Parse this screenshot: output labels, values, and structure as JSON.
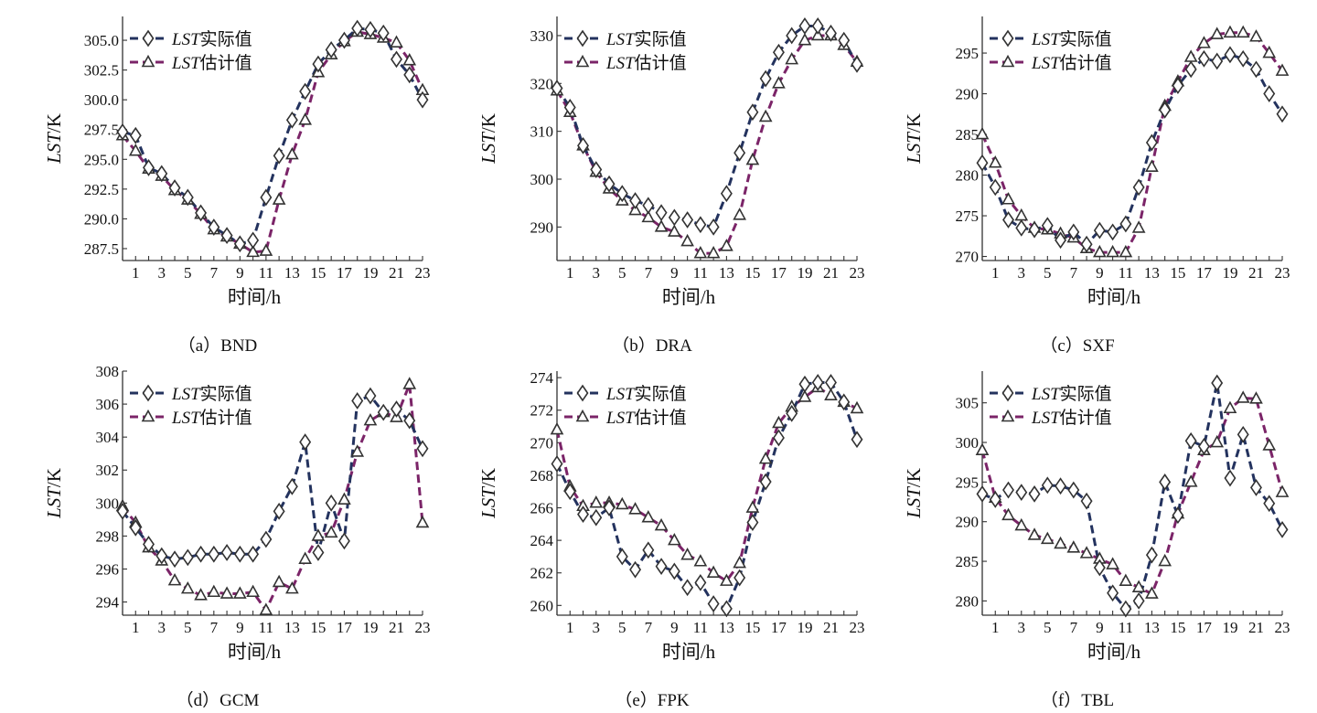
{
  "colors": {
    "actual": "#23325e",
    "estimated": "#7b2468",
    "axis": "#333333",
    "marker_fill": "#ffffff"
  },
  "legend": {
    "actual_prefix": "LST",
    "actual_suffix": "实际值",
    "estimated_prefix": "LST",
    "estimated_suffix": "估计值"
  },
  "axes": {
    "xlabel": "时间/h",
    "ylabel_prefix": "LST",
    "ylabel_suffix": "/K"
  },
  "chart_data": [
    {
      "type": "line",
      "caption": "（a）BND",
      "x": [
        0,
        1,
        2,
        3,
        4,
        5,
        6,
        7,
        8,
        9,
        10,
        11,
        12,
        13,
        14,
        15,
        16,
        17,
        18,
        19,
        20,
        21,
        22,
        23
      ],
      "xticks": [
        1,
        3,
        5,
        7,
        9,
        11,
        13,
        15,
        17,
        19,
        21,
        23
      ],
      "xlim": [
        0,
        23
      ],
      "yticks": [
        287.5,
        290.0,
        292.5,
        295.0,
        297.5,
        300.0,
        302.5,
        305.0
      ],
      "ylim": [
        286.5,
        307
      ],
      "series": [
        {
          "name": "LST实际值",
          "marker": "diamond",
          "values": [
            297.3,
            297.0,
            294.3,
            293.8,
            292.6,
            291.8,
            290.5,
            289.3,
            288.6,
            287.9,
            288.2,
            291.8,
            295.3,
            298.3,
            300.7,
            303.0,
            304.2,
            305.0,
            306.0,
            305.9,
            305.6,
            303.4,
            302.1,
            300.0
          ]
        },
        {
          "name": "LST估计值",
          "marker": "triangle",
          "values": [
            297.0,
            295.7,
            294.2,
            293.6,
            292.4,
            291.6,
            290.4,
            289.1,
            288.5,
            287.9,
            287.2,
            287.3,
            291.6,
            295.4,
            298.3,
            302.3,
            303.8,
            304.9,
            305.7,
            305.5,
            305.2,
            304.8,
            303.3,
            300.8
          ]
        }
      ]
    },
    {
      "type": "line",
      "caption": "（b）DRA",
      "x": [
        0,
        1,
        2,
        3,
        4,
        5,
        6,
        7,
        8,
        9,
        10,
        11,
        12,
        13,
        14,
        15,
        16,
        17,
        18,
        19,
        20,
        21,
        22,
        23
      ],
      "xticks": [
        1,
        3,
        5,
        7,
        9,
        11,
        13,
        15,
        17,
        19,
        21,
        23
      ],
      "xlim": [
        0,
        23
      ],
      "yticks": [
        290,
        300,
        310,
        320,
        330
      ],
      "ylim": [
        283,
        334
      ],
      "series": [
        {
          "name": "LST实际值",
          "marker": "diamond",
          "values": [
            319.0,
            315.0,
            307.0,
            302.0,
            299.0,
            297.0,
            295.5,
            294.5,
            293.0,
            292.0,
            291.5,
            290.5,
            290.0,
            297.0,
            305.5,
            314.0,
            321.0,
            326.5,
            330.0,
            332.0,
            332.0,
            330.5,
            329.0,
            324.0
          ]
        },
        {
          "name": "LST估计值",
          "marker": "triangle",
          "values": [
            318.5,
            314.0,
            307.0,
            301.5,
            298.0,
            295.5,
            293.5,
            292.0,
            290.0,
            289.0,
            287.0,
            284.5,
            284.5,
            286.0,
            292.5,
            304.0,
            313.0,
            320.0,
            325.0,
            329.0,
            330.0,
            330.0,
            328.0,
            324.5
          ]
        }
      ]
    },
    {
      "type": "line",
      "caption": "（c）SXF",
      "x": [
        0,
        1,
        2,
        3,
        4,
        5,
        6,
        7,
        8,
        9,
        10,
        11,
        12,
        13,
        14,
        15,
        16,
        17,
        18,
        19,
        20,
        21,
        22,
        23
      ],
      "xticks": [
        1,
        3,
        5,
        7,
        9,
        11,
        13,
        15,
        17,
        19,
        21,
        23
      ],
      "xlim": [
        0,
        23
      ],
      "yticks": [
        270,
        275,
        280,
        285,
        290,
        295
      ],
      "ylim": [
        269.5,
        299.5
      ],
      "series": [
        {
          "name": "LST实际值",
          "marker": "diamond",
          "values": [
            281.5,
            278.5,
            274.5,
            273.5,
            273.3,
            273.8,
            272.0,
            273.0,
            271.5,
            273.2,
            273.0,
            274.0,
            278.5,
            284.0,
            288.0,
            291.0,
            293.0,
            294.3,
            294.0,
            294.8,
            294.3,
            293.0,
            290.0,
            287.5
          ]
        },
        {
          "name": "LST估计值",
          "marker": "triangle",
          "values": [
            285.0,
            281.5,
            277.0,
            275.0,
            273.5,
            273.3,
            272.8,
            272.3,
            271.0,
            270.5,
            270.5,
            270.5,
            273.5,
            281.0,
            288.5,
            291.5,
            294.5,
            296.2,
            297.3,
            297.5,
            297.5,
            297.0,
            295.0,
            292.8
          ]
        }
      ]
    },
    {
      "type": "line",
      "caption": "（d）GCM",
      "x": [
        0,
        1,
        2,
        3,
        4,
        5,
        6,
        7,
        8,
        9,
        10,
        11,
        12,
        13,
        14,
        15,
        16,
        17,
        18,
        19,
        20,
        21,
        22,
        23
      ],
      "xticks": [
        1,
        3,
        5,
        7,
        9,
        11,
        13,
        15,
        17,
        19,
        21,
        23
      ],
      "xlim": [
        0,
        23
      ],
      "yticks": [
        294,
        296,
        298,
        300,
        302,
        304,
        306,
        308
      ],
      "ylim": [
        293.2,
        308
      ],
      "series": [
        {
          "name": "LST实际值",
          "marker": "diamond",
          "values": [
            299.5,
            298.5,
            297.5,
            296.8,
            296.6,
            296.7,
            296.9,
            296.9,
            297.0,
            296.9,
            296.9,
            297.8,
            299.5,
            301.0,
            303.7,
            297.0,
            300.0,
            297.7,
            306.2,
            306.5,
            305.5,
            305.7,
            305.0,
            303.3
          ]
        },
        {
          "name": "LST估计值",
          "marker": "triangle",
          "values": [
            299.8,
            298.8,
            297.3,
            296.5,
            295.3,
            294.8,
            294.4,
            294.6,
            294.5,
            294.5,
            294.6,
            293.5,
            295.2,
            294.8,
            296.6,
            298.0,
            298.2,
            300.2,
            303.1,
            305.0,
            305.5,
            305.2,
            307.2,
            298.8
          ]
        }
      ]
    },
    {
      "type": "line",
      "caption": "（e）FPK",
      "x": [
        0,
        1,
        2,
        3,
        4,
        5,
        6,
        7,
        8,
        9,
        10,
        11,
        12,
        13,
        14,
        15,
        16,
        17,
        18,
        19,
        20,
        21,
        22,
        23
      ],
      "xticks": [
        1,
        3,
        5,
        7,
        9,
        11,
        13,
        15,
        17,
        19,
        21,
        23
      ],
      "xlim": [
        0,
        23
      ],
      "yticks": [
        260,
        262,
        264,
        266,
        268,
        270,
        272,
        274
      ],
      "ylim": [
        259.4,
        274.4
      ],
      "series": [
        {
          "name": "LST实际值",
          "marker": "diamond",
          "values": [
            268.7,
            267.0,
            265.6,
            265.4,
            266.0,
            263.0,
            262.2,
            263.4,
            262.4,
            262.1,
            261.1,
            261.4,
            260.1,
            259.8,
            261.7,
            265.1,
            267.6,
            270.3,
            271.8,
            273.6,
            273.7,
            273.7,
            272.5,
            270.2
          ]
        },
        {
          "name": "LST估计值",
          "marker": "triangle",
          "values": [
            270.8,
            267.3,
            266.1,
            266.3,
            266.3,
            266.2,
            265.9,
            265.4,
            264.9,
            264.0,
            263.1,
            262.7,
            262.0,
            261.5,
            262.6,
            266.0,
            269.0,
            271.2,
            272.2,
            272.8,
            273.4,
            272.9,
            272.5,
            272.1
          ]
        }
      ]
    },
    {
      "type": "line",
      "caption": "（f）TBL",
      "x": [
        0,
        1,
        2,
        3,
        4,
        5,
        6,
        7,
        8,
        9,
        10,
        11,
        12,
        13,
        14,
        15,
        16,
        17,
        18,
        19,
        20,
        21,
        22,
        23
      ],
      "xticks": [
        1,
        3,
        5,
        7,
        9,
        11,
        13,
        15,
        17,
        19,
        21,
        23
      ],
      "xlim": [
        0,
        23
      ],
      "yticks": [
        280,
        285,
        290,
        295,
        300,
        305
      ],
      "ylim": [
        278.2,
        309
      ],
      "series": [
        {
          "name": "LST实际值",
          "marker": "diamond",
          "values": [
            293.5,
            292.8,
            294.0,
            293.7,
            293.5,
            294.6,
            294.5,
            294.0,
            292.6,
            284.2,
            281.0,
            279.0,
            280.0,
            285.8,
            295.0,
            290.8,
            300.2,
            299.5,
            307.5,
            295.5,
            301.0,
            294.3,
            292.3,
            289.0
          ]
        },
        {
          "name": "LST估计值",
          "marker": "triangle",
          "values": [
            299.0,
            293.0,
            290.8,
            289.5,
            288.3,
            287.8,
            287.2,
            286.7,
            286.0,
            285.3,
            284.6,
            282.5,
            281.7,
            280.9,
            285.0,
            291.0,
            295.0,
            299.0,
            300.0,
            304.3,
            305.6,
            305.5,
            299.6,
            293.7
          ]
        }
      ]
    }
  ]
}
